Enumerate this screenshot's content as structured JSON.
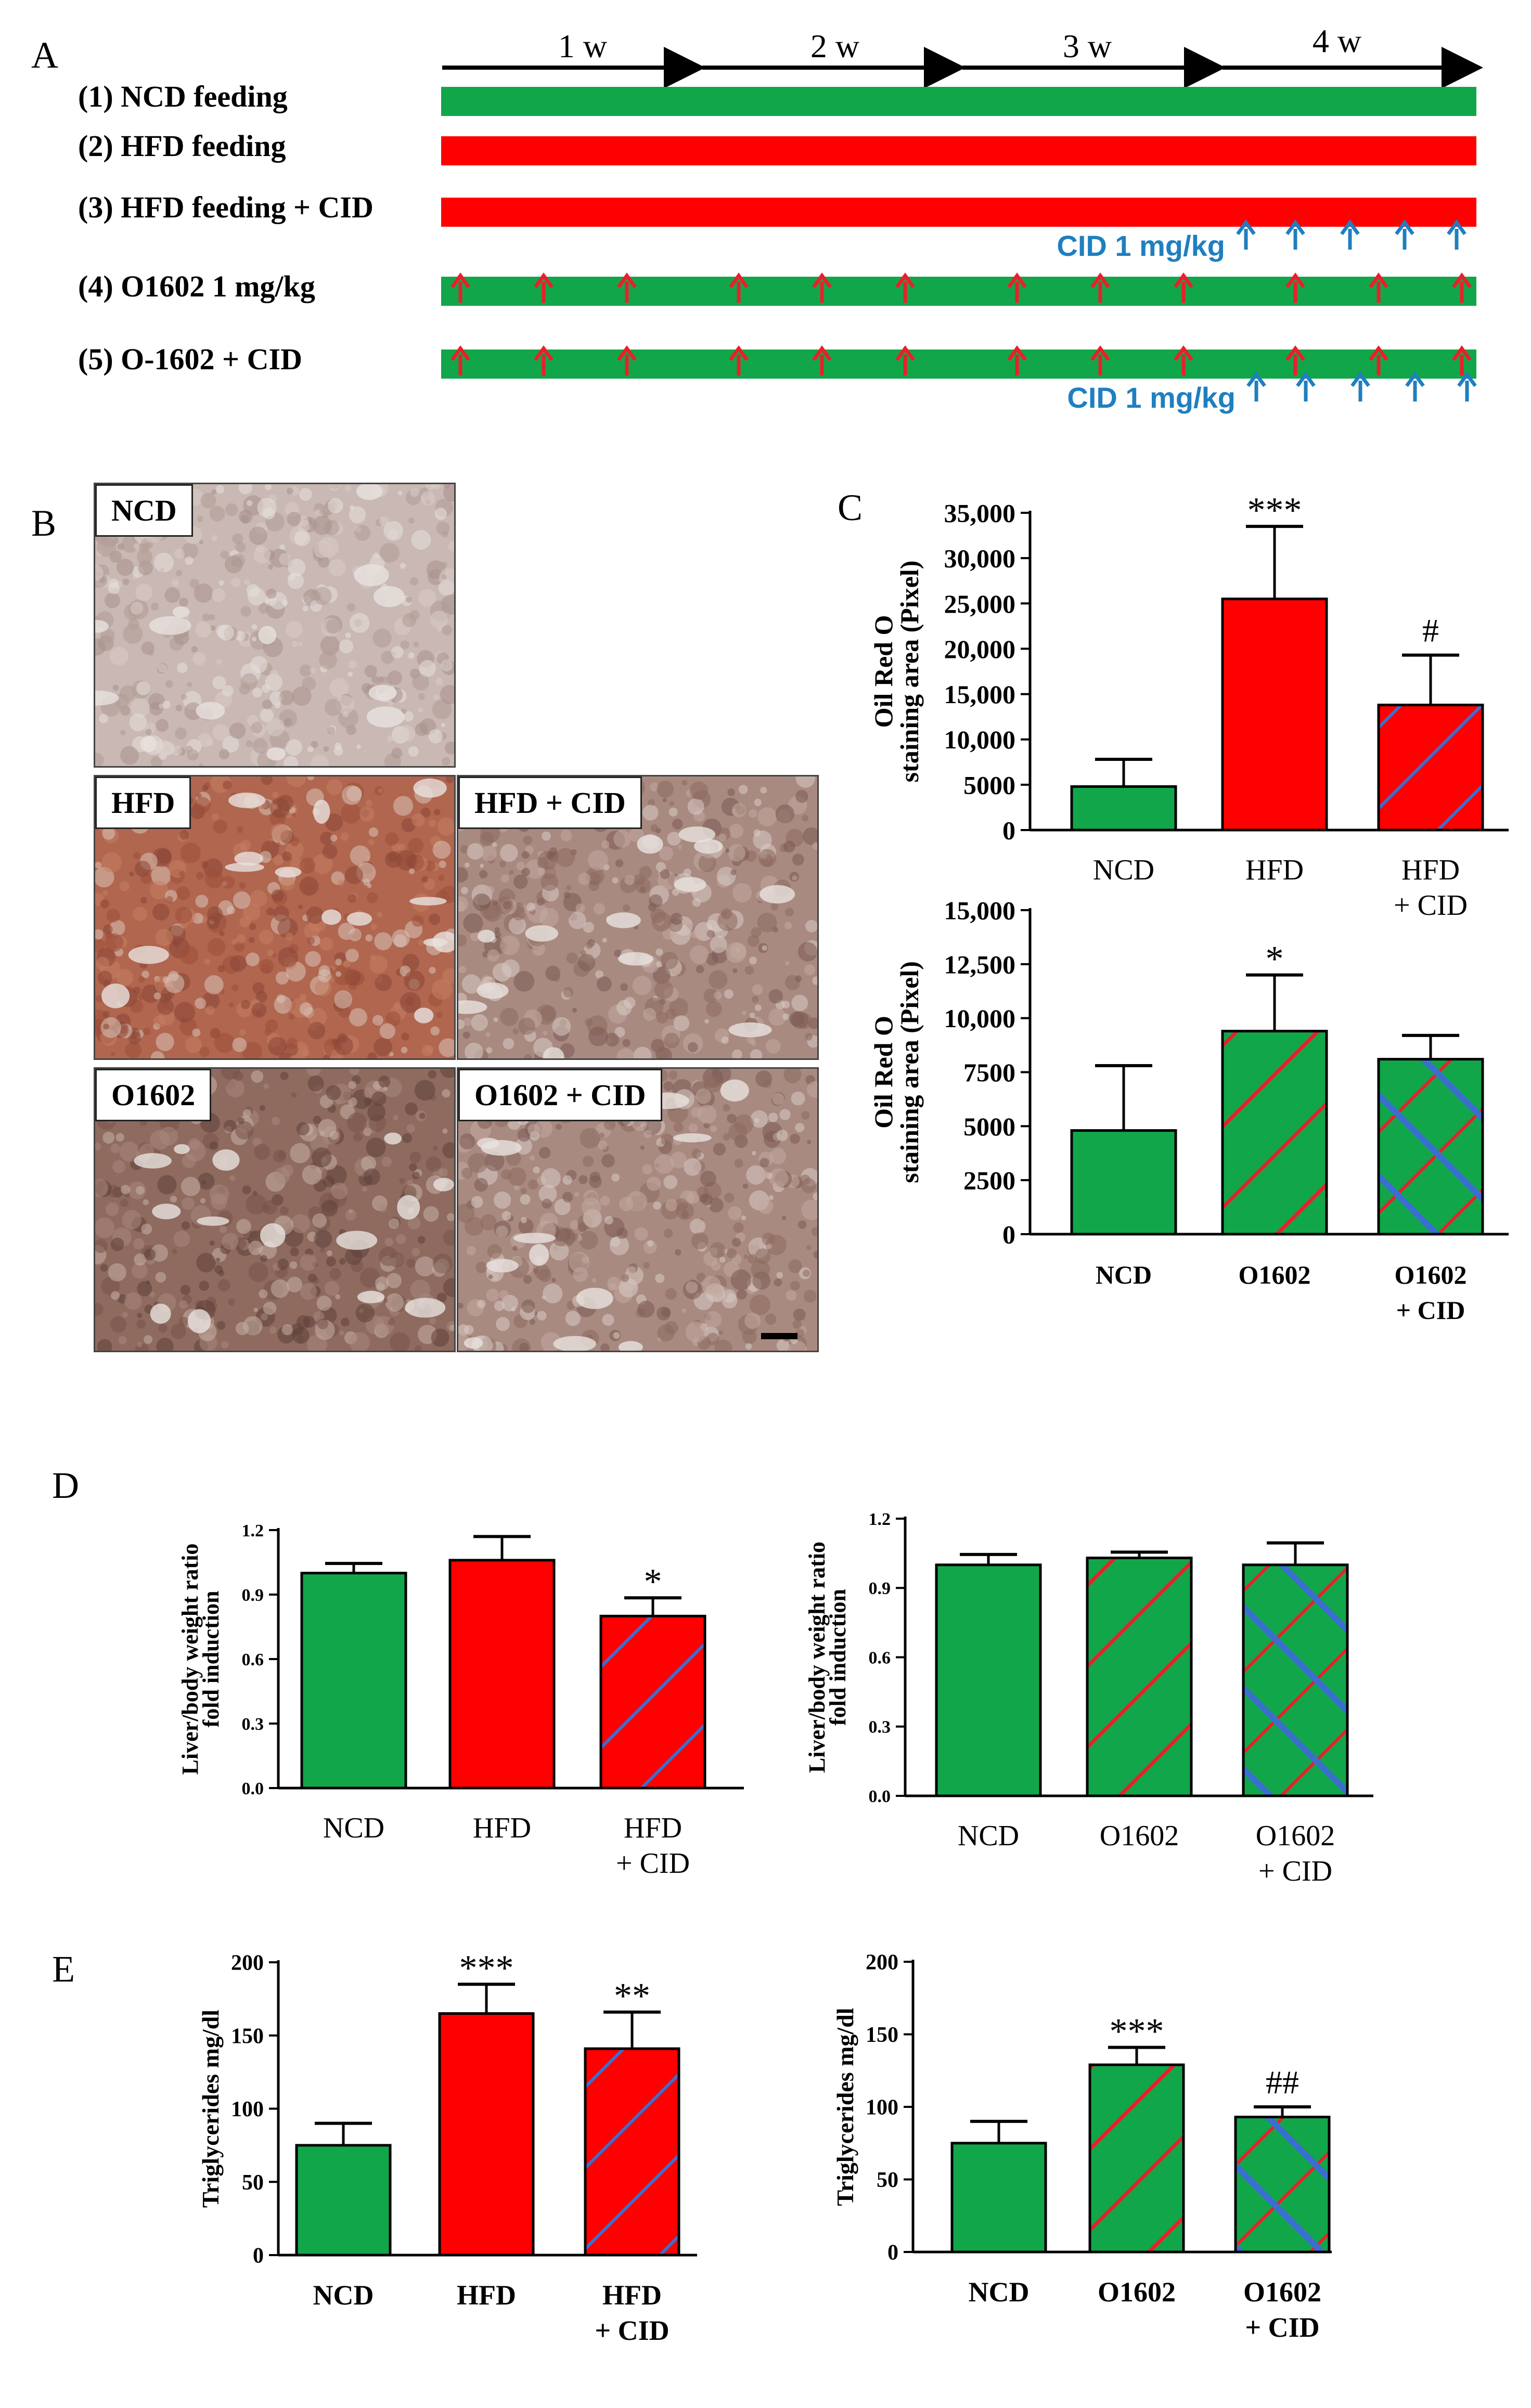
{
  "colors": {
    "ncd": "#12a64a",
    "hfd": "#ff0000",
    "red_arrow": "#e8202a",
    "blue_arrow": "#1f7fc0",
    "hatch_red": "#e8202a",
    "hatch_blue": "#3a6fd0"
  },
  "panels": {
    "a": "A",
    "b": "B",
    "c": "C",
    "d": "D",
    "e": "E"
  },
  "timeline": {
    "weeks": [
      "1 w",
      "2 w",
      "3 w",
      "4 w"
    ],
    "rows": [
      {
        "label": "(1) NCD feeding",
        "color": "ncd",
        "red_arrows": 0,
        "cid": false
      },
      {
        "label": "(2) HFD feeding",
        "color": "hfd",
        "red_arrows": 0,
        "cid": false
      },
      {
        "label": "(3) HFD feeding  + CID",
        "color": "hfd",
        "red_arrows": 0,
        "cid": true
      },
      {
        "label": "(4) O1602 1 mg/kg",
        "color": "ncd",
        "red_arrows": 12,
        "cid": false
      },
      {
        "label": "(5) O-1602 + CID",
        "color": "ncd",
        "red_arrows": 12,
        "cid": true
      }
    ],
    "cid_label": "CID 1 mg/kg"
  },
  "micrographs": [
    {
      "label": "NCD",
      "tone": "pale"
    },
    {
      "label": "HFD",
      "tone": "red"
    },
    {
      "label": "HFD + CID",
      "tone": "mid"
    },
    {
      "label": "O1602",
      "tone": "dark"
    },
    {
      "label": "O1602 + CID",
      "tone": "mid"
    }
  ],
  "chart_data": [
    {
      "id": "C-top",
      "type": "bar",
      "ylabel": [
        "Oil Red O",
        "staining area (Pixel)"
      ],
      "ylim": [
        0,
        35000
      ],
      "ticks": [
        "0",
        "5000",
        "10,000",
        "15,000",
        "20,000",
        "25,000",
        "30,000",
        "35,000"
      ],
      "tick_values": [
        0,
        5000,
        10000,
        15000,
        20000,
        25000,
        30000,
        35000
      ],
      "categories": [
        [
          "NCD"
        ],
        [
          "HFD"
        ],
        [
          "HFD",
          "+ CID"
        ]
      ],
      "values": [
        4800,
        25500,
        13800
      ],
      "errors": [
        3000,
        8000,
        5500
      ],
      "fills": [
        "ncd",
        "hfd",
        "hfd-blue"
      ],
      "significance": [
        "",
        "***",
        "#"
      ],
      "bold_categories": false
    },
    {
      "id": "C-bottom",
      "type": "bar",
      "ylabel": [
        "Oil Red O",
        "staining area (Pixel)"
      ],
      "ylim": [
        0,
        15000
      ],
      "ticks": [
        "0",
        "2500",
        "5000",
        "7500",
        "10,000",
        "12,500",
        "15,000"
      ],
      "tick_values": [
        0,
        2500,
        5000,
        7500,
        10000,
        12500,
        15000
      ],
      "categories": [
        [
          "NCD"
        ],
        [
          "O1602"
        ],
        [
          "O1602",
          "+ CID"
        ]
      ],
      "values": [
        4800,
        9400,
        8100
      ],
      "errors": [
        3000,
        2600,
        1100
      ],
      "fills": [
        "ncd",
        "ncd-red",
        "ncd-cross"
      ],
      "significance": [
        "",
        "*",
        ""
      ],
      "bold_categories": true
    },
    {
      "id": "D-left",
      "type": "bar",
      "ylabel": [
        "Liver/body weight ratio",
        "fold induction"
      ],
      "ylim": [
        0,
        1.2
      ],
      "ticks": [
        "0.0",
        "0.3",
        "0.6",
        "0.9",
        "1.2"
      ],
      "tick_values": [
        0,
        0.3,
        0.6,
        0.9,
        1.2
      ],
      "categories": [
        [
          "NCD"
        ],
        [
          "HFD"
        ],
        [
          "HFD",
          "+ CID"
        ]
      ],
      "values": [
        1.0,
        1.06,
        0.8
      ],
      "errors": [
        0.045,
        0.11,
        0.085
      ],
      "fills": [
        "ncd",
        "hfd",
        "hfd-blue"
      ],
      "significance": [
        "",
        "",
        "*"
      ],
      "bold_categories": false
    },
    {
      "id": "D-right",
      "type": "bar",
      "ylabel": [
        "Liver/body weight ratio",
        "fold induction"
      ],
      "ylim": [
        0,
        1.2
      ],
      "ticks": [
        "0.0",
        "0.3",
        "0.6",
        "0.9",
        "1.2"
      ],
      "tick_values": [
        0,
        0.3,
        0.6,
        0.9,
        1.2
      ],
      "categories": [
        [
          "NCD"
        ],
        [
          "O1602"
        ],
        [
          "O1602",
          "+ CID"
        ]
      ],
      "values": [
        1.0,
        1.03,
        1.0
      ],
      "errors": [
        0.045,
        0.025,
        0.095
      ],
      "fills": [
        "ncd",
        "ncd-red",
        "ncd-cross"
      ],
      "significance": [
        "",
        "",
        ""
      ],
      "bold_categories": false
    },
    {
      "id": "E-left",
      "type": "bar",
      "ylabel": [
        "Triglycerides mg/dl"
      ],
      "ylim": [
        0,
        200
      ],
      "ticks": [
        "0",
        "50",
        "100",
        "150",
        "200"
      ],
      "tick_values": [
        0,
        50,
        100,
        150,
        200
      ],
      "categories": [
        [
          "NCD"
        ],
        [
          "HFD"
        ],
        [
          "HFD",
          "+ CID"
        ]
      ],
      "values": [
        75,
        165,
        141
      ],
      "errors": [
        15,
        20,
        25
      ],
      "fills": [
        "ncd",
        "hfd",
        "hfd-blue"
      ],
      "significance": [
        "",
        "***",
        "**"
      ],
      "bold_categories": true
    },
    {
      "id": "E-right",
      "type": "bar",
      "ylabel": [
        "Triglycerides mg/dl"
      ],
      "ylim": [
        0,
        200
      ],
      "ticks": [
        "0",
        "50",
        "100",
        "150",
        "200"
      ],
      "tick_values": [
        0,
        50,
        100,
        150,
        200
      ],
      "categories": [
        [
          "NCD"
        ],
        [
          "O1602"
        ],
        [
          "O1602",
          "+ CID"
        ]
      ],
      "values": [
        75,
        129,
        93
      ],
      "errors": [
        15,
        12,
        7
      ],
      "fills": [
        "ncd",
        "ncd-red",
        "ncd-cross"
      ],
      "significance": [
        "",
        "***",
        "##"
      ],
      "bold_categories": true
    }
  ]
}
